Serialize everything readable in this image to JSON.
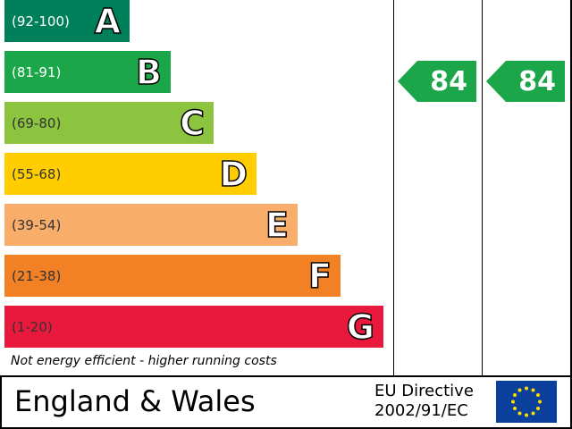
{
  "chart_data": {
    "type": "bar",
    "categories": [
      "A",
      "B",
      "C",
      "D",
      "E",
      "F",
      "G"
    ],
    "bands": [
      {
        "letter": "A",
        "range": "(92-100)",
        "color": "#00805a",
        "range_light": true
      },
      {
        "letter": "B",
        "range": "(81-91)",
        "color": "#1ba64a",
        "range_light": true
      },
      {
        "letter": "C",
        "range": "(69-80)",
        "color": "#8cc43f",
        "range_light": false
      },
      {
        "letter": "D",
        "range": "(55-68)",
        "color": "#ffcd00",
        "range_light": false
      },
      {
        "letter": "E",
        "range": "(39-54)",
        "color": "#f9ad6a",
        "range_light": false
      },
      {
        "letter": "F",
        "range": "(21-38)",
        "color": "#f28024",
        "range_light": false
      },
      {
        "letter": "G",
        "range": "(1-20)",
        "color": "#e8193d",
        "range_light": false
      }
    ],
    "current_rating": {
      "value": 84,
      "band": "B",
      "color": "#1ba64a"
    },
    "potential_rating": {
      "value": 84,
      "band": "B",
      "color": "#1ba64a"
    }
  },
  "footnote": "Not energy efficient - higher running costs",
  "region": "England & Wales",
  "directive_line1": "EU Directive",
  "directive_line2": "2002/91/EC",
  "current_label": "84",
  "potential_label": "84",
  "eu_flag_icon": "eu-flag-icon"
}
